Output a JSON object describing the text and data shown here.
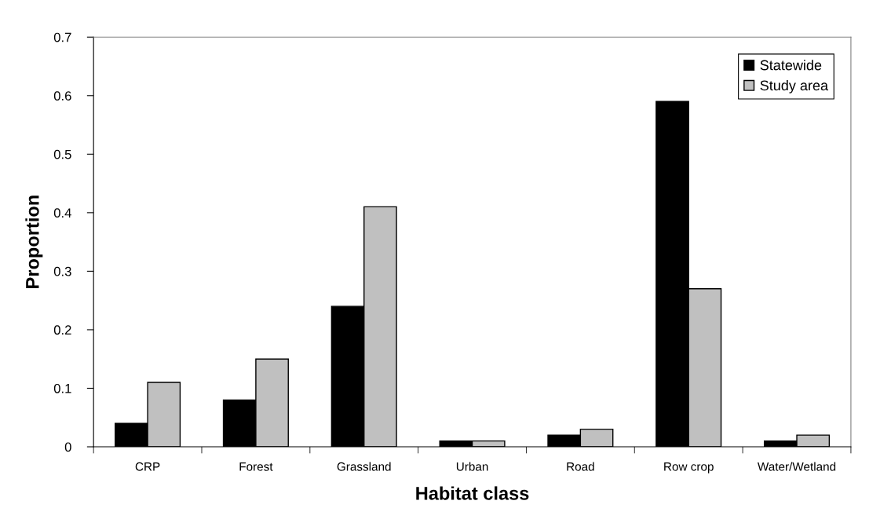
{
  "chart_data": {
    "type": "bar",
    "xlabel": "Habitat class",
    "ylabel": "Proportion",
    "categories": [
      "CRP",
      "Forest",
      "Grassland",
      "Urban",
      "Road",
      "Row crop",
      "Water/Wetland"
    ],
    "series": [
      {
        "name": "Statewide",
        "color": "#000000",
        "values": [
          0.04,
          0.08,
          0.24,
          0.01,
          0.02,
          0.59,
          0.01
        ]
      },
      {
        "name": "Study area",
        "color": "#c0c0c0",
        "values": [
          0.11,
          0.15,
          0.41,
          0.01,
          0.03,
          0.27,
          0.02
        ]
      }
    ],
    "ylim": [
      0,
      0.7
    ],
    "yticks": [
      {
        "value": 0,
        "label": "0"
      },
      0.1,
      0.2,
      0.3,
      0.4,
      0.5,
      0.6,
      0.7
    ],
    "grid": false,
    "legend": "top right"
  }
}
